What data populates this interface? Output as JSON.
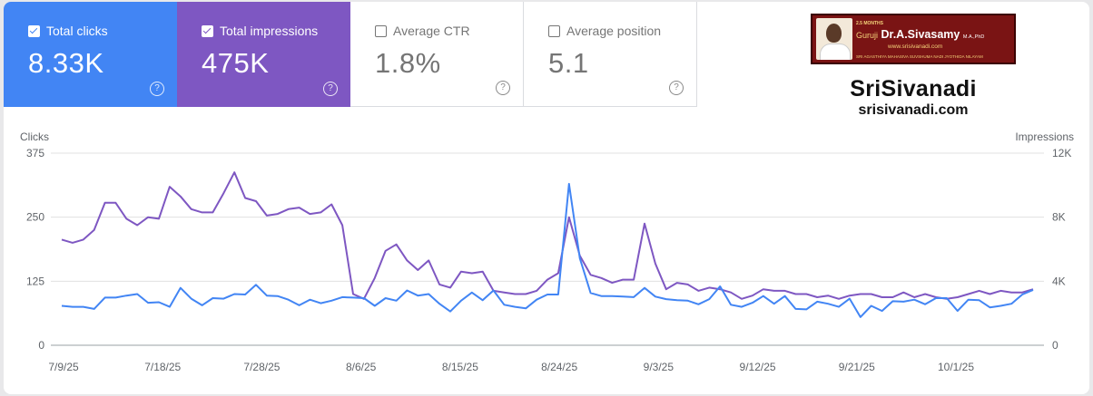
{
  "metrics": [
    {
      "label": "Total clicks",
      "value": "8.33K",
      "checked": true
    },
    {
      "label": "Total impressions",
      "value": "475K",
      "checked": true
    },
    {
      "label": "Average CTR",
      "value": "1.8%",
      "checked": false
    },
    {
      "label": "Average position",
      "value": "5.1",
      "checked": false
    }
  ],
  "help_glyph": "?",
  "branding": {
    "small_text": "2.5 MONTHS",
    "guruji": "Guruji",
    "name": "Dr.A.Sivasamy",
    "degree": "M.A.,PhD",
    "url": "www.srisivanadi.com",
    "tagline": "SRI AGASTHIYA MAHASIVA SUVSHUMA NADI JYOTHIDA NILAYAM",
    "site_name": "SriSivanadi",
    "site_url": "srisivanadi.com"
  },
  "colors": {
    "clicks": "#4285f4",
    "impressions": "#7e57c2"
  },
  "chart_data": {
    "type": "line",
    "left_axis_label": "Clicks",
    "right_axis_label": "Impressions",
    "y_left_ticks": [
      "375",
      "250",
      "125",
      "0"
    ],
    "y_left_range": [
      0,
      375
    ],
    "y_right_ticks": [
      "12K",
      "8K",
      "4K",
      "0"
    ],
    "y_right_range": [
      0,
      12000
    ],
    "x_tick_labels": [
      "7/9/25",
      "7/18/25",
      "7/28/25",
      "8/6/25",
      "8/15/25",
      "8/24/25",
      "9/3/25",
      "9/12/25",
      "9/21/25",
      "10/1/25"
    ],
    "grid": true,
    "series": [
      {
        "name": "Clicks",
        "axis": "left",
        "values": [
          77,
          75,
          75,
          71,
          93,
          93,
          97,
          100,
          83,
          84,
          75,
          112,
          91,
          78,
          92,
          91,
          100,
          99,
          118,
          97,
          96,
          89,
          78,
          89,
          82,
          87,
          94,
          93,
          92,
          77,
          92,
          87,
          107,
          97,
          100,
          81,
          66,
          87,
          103,
          88,
          107,
          79,
          75,
          72,
          89,
          99,
          99,
          315,
          170,
          102,
          96,
          96,
          95,
          94,
          112,
          95,
          90,
          88,
          87,
          80,
          90,
          115,
          79,
          75,
          83,
          96,
          81,
          96,
          71,
          70,
          85,
          81,
          75,
          91,
          55,
          77,
          67,
          86,
          85,
          89,
          80,
          92,
          92,
          67,
          89,
          88,
          74,
          77,
          81,
          99,
          108
        ]
      },
      {
        "name": "Impressions",
        "axis": "right",
        "values": [
          6600,
          6400,
          6600,
          7200,
          8900,
          8900,
          7900,
          7500,
          8000,
          7900,
          9900,
          9300,
          8500,
          8300,
          8300,
          9500,
          10800,
          9200,
          9000,
          8100,
          8200,
          8500,
          8600,
          8200,
          8300,
          8800,
          7500,
          3200,
          2900,
          4200,
          5900,
          6300,
          5300,
          4700,
          5300,
          3800,
          3600,
          4600,
          4500,
          4600,
          3400,
          3300,
          3200,
          3200,
          3400,
          4100,
          4500,
          8000,
          5600,
          4400,
          4200,
          3900,
          4100,
          4100,
          7600,
          5100,
          3500,
          3900,
          3800,
          3400,
          3600,
          3500,
          3300,
          2900,
          3100,
          3500,
          3400,
          3400,
          3200,
          3200,
          3000,
          3100,
          2900,
          3100,
          3200,
          3200,
          3000,
          3000,
          3300,
          3000,
          3200,
          3000,
          2900,
          3000,
          3200,
          3400,
          3200,
          3400,
          3300,
          3300,
          3500
        ]
      }
    ]
  }
}
